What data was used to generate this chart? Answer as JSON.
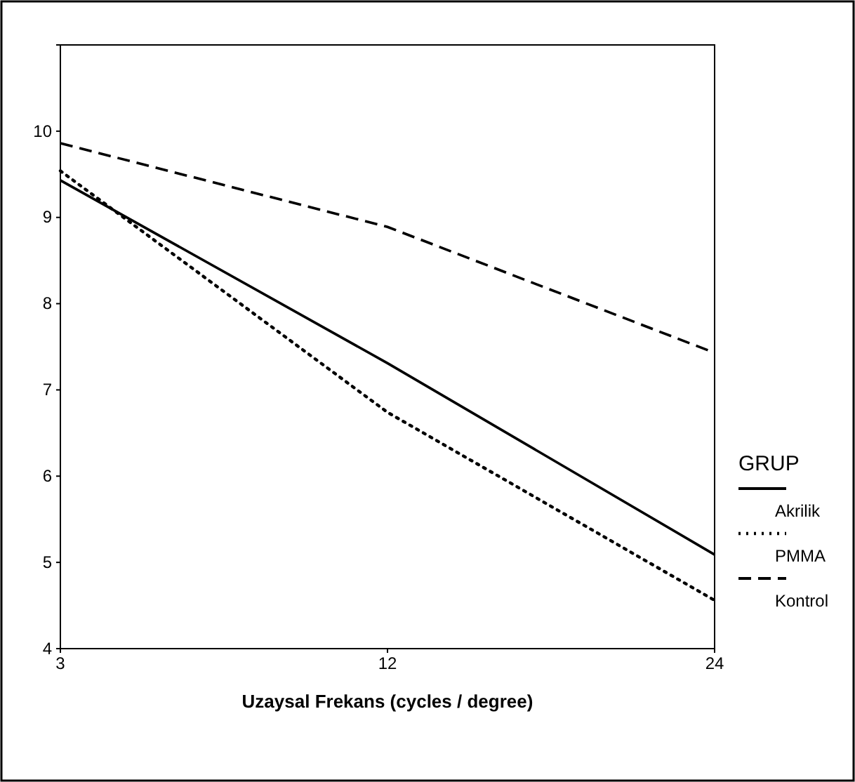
{
  "chart_data": {
    "type": "line",
    "xlabel": "Uzaysal Frekans (cycles / degree)",
    "legend_title": "GRUP",
    "categories": [
      "3",
      "12",
      "24"
    ],
    "series": [
      {
        "name": "Akrilik",
        "color": "#000000",
        "line_style": "solid",
        "values": [
          9.43,
          7.31,
          5.09
        ]
      },
      {
        "name": "PMMA",
        "color": "#000000",
        "line_style": "dotted",
        "values": [
          9.54,
          6.74,
          4.56
        ]
      },
      {
        "name": "Kontrol",
        "color": "#000000",
        "line_style": "dashed",
        "values": [
          9.86,
          8.89,
          7.43
        ]
      }
    ],
    "ylim": [
      4,
      11
    ],
    "yticks": [
      4,
      5,
      6,
      7,
      8,
      9,
      10
    ],
    "grid": false,
    "legend": "right",
    "marker": "none"
  }
}
